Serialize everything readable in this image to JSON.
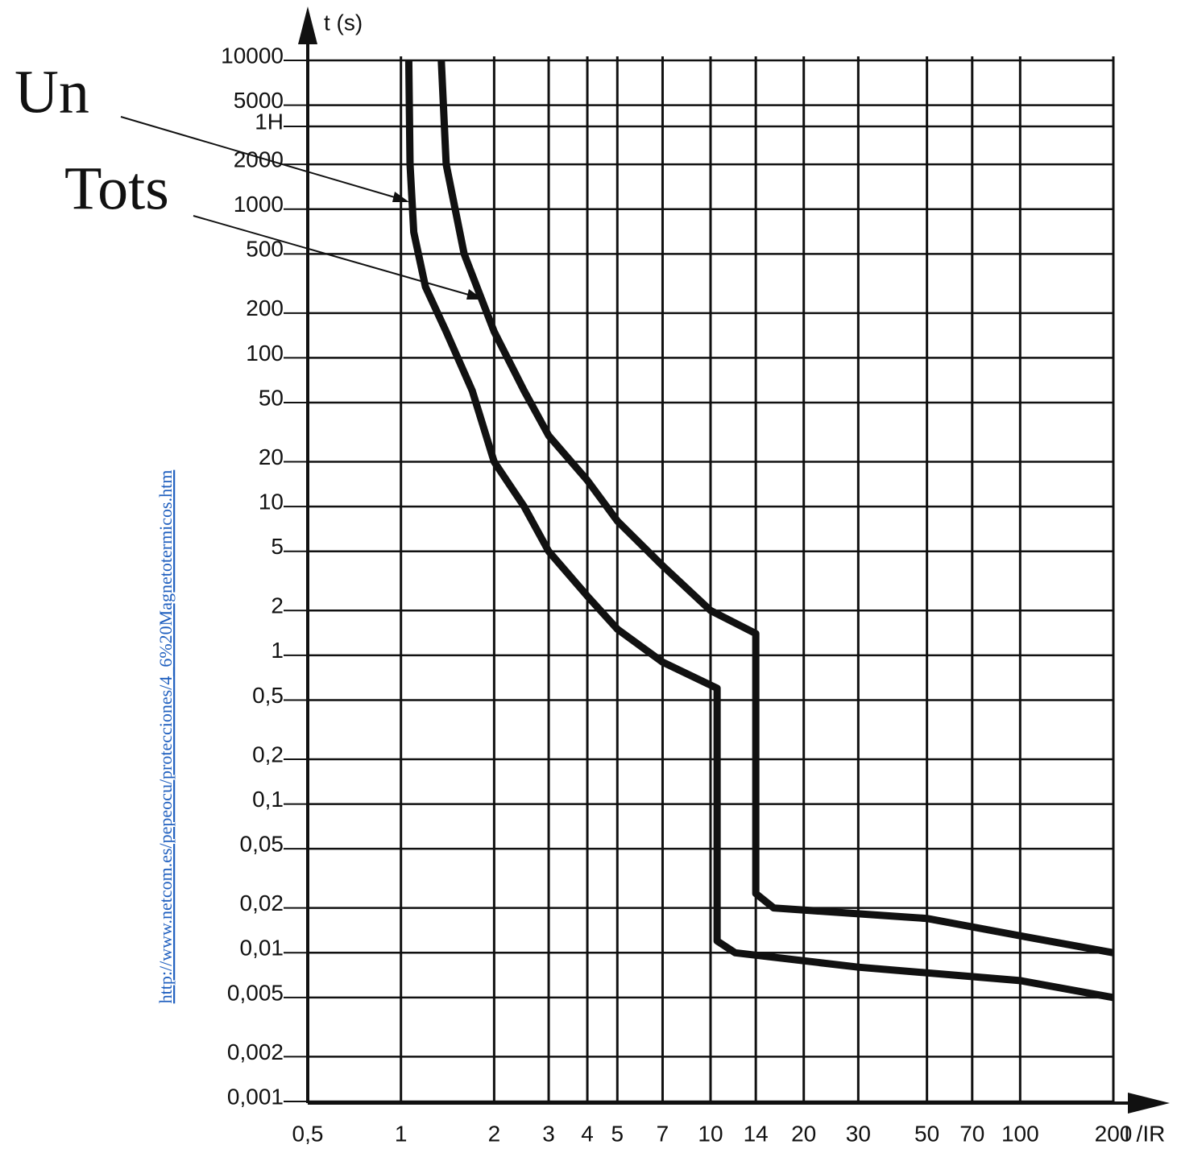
{
  "chart_data": {
    "type": "line",
    "x_label": "I /IR",
    "y_label": "t (s)",
    "source": "http://www.netcom.es/pepeocu/protecciones/4_6%20Magnetotermicos.htm",
    "log_x": true,
    "log_y": true,
    "grid": true,
    "xlim": [
      0.5,
      200
    ],
    "ylim": [
      0.001,
      10000
    ],
    "xticks": [
      {
        "value": 0.5,
        "label": "0,5"
      },
      1,
      2,
      3,
      4,
      5,
      7,
      10,
      14,
      20,
      30,
      50,
      70,
      100,
      200
    ],
    "yticks": [
      10000,
      5000,
      {
        "value": 3600,
        "label": "1H"
      },
      2000,
      1000,
      500,
      200,
      100,
      50,
      20,
      10,
      5,
      2,
      1,
      {
        "value": 0.5,
        "label": "0,5"
      },
      {
        "value": 0.2,
        "label": "0,2"
      },
      {
        "value": 0.1,
        "label": "0,1"
      },
      {
        "value": 0.05,
        "label": "0,05"
      },
      {
        "value": 0.02,
        "label": "0,02"
      },
      {
        "value": 0.01,
        "label": "0,01"
      },
      {
        "value": 0.005,
        "label": "0,005"
      },
      {
        "value": 0.002,
        "label": "0,002"
      },
      {
        "value": 0.001,
        "label": "0,001"
      }
    ],
    "series": [
      {
        "name": "Un",
        "color": "#111111",
        "x": [
          1.06,
          1.07,
          1.1,
          1.2,
          1.4,
          1.7,
          2,
          2.5,
          3,
          4,
          5,
          7,
          10.5,
          10.5,
          12,
          30,
          100,
          200
        ],
        "values": [
          10000,
          2000,
          700,
          300,
          150,
          60,
          20,
          10,
          5,
          2.5,
          1.5,
          0.9,
          0.6,
          0.012,
          0.01,
          0.008,
          0.0065,
          0.005
        ]
      },
      {
        "name": "Tots",
        "color": "#111111",
        "x": [
          1.35,
          1.4,
          1.6,
          2,
          2.5,
          3,
          4,
          5,
          7,
          10,
          14,
          14,
          16,
          50,
          100,
          200
        ],
        "values": [
          10000,
          2000,
          500,
          150,
          60,
          30,
          15,
          8,
          4,
          2,
          1.4,
          0.025,
          0.02,
          0.017,
          0.013,
          0.01
        ]
      }
    ]
  }
}
